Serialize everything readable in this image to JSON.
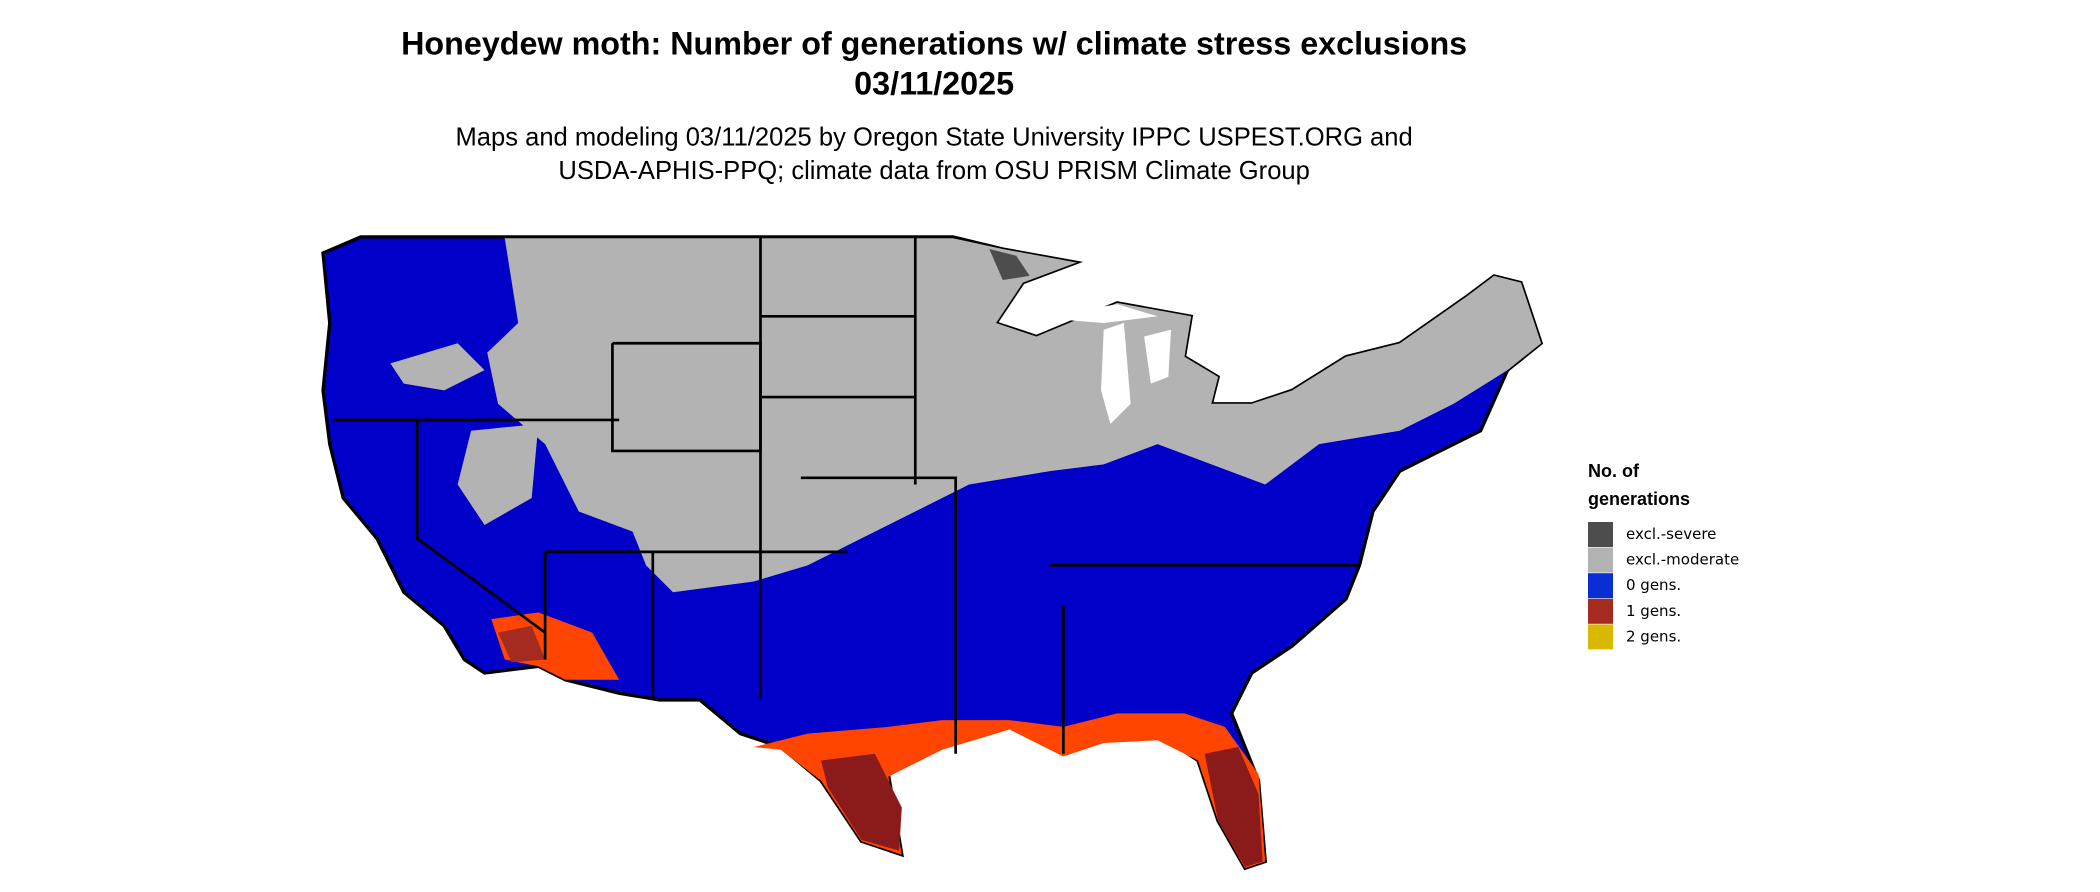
{
  "map": {
    "title": [
      "Honeydew moth: Number of generations w/ climate stress exclusions",
      "03/11/2025"
    ],
    "subtitle": [
      "Maps and modeling 03/11/2025 by Oregon State University IPPC USPEST.ORG and",
      "USDA-APHIS-PPQ; climate data from OSU PRISM Climate Group"
    ],
    "legend": {
      "title": [
        "No. of",
        "generations"
      ],
      "items": [
        {
          "label": "excl.-severe",
          "color": "#4d4d4d"
        },
        {
          "label": "excl.-moderate",
          "color": "#b3b3b3"
        },
        {
          "label": "0 gens.",
          "color": "#0a2ed6"
        },
        {
          "label": "1 gens.",
          "color": "#a52a1f"
        },
        {
          "label": "2 gens.",
          "color": "#d9b800"
        }
      ]
    }
  }
}
